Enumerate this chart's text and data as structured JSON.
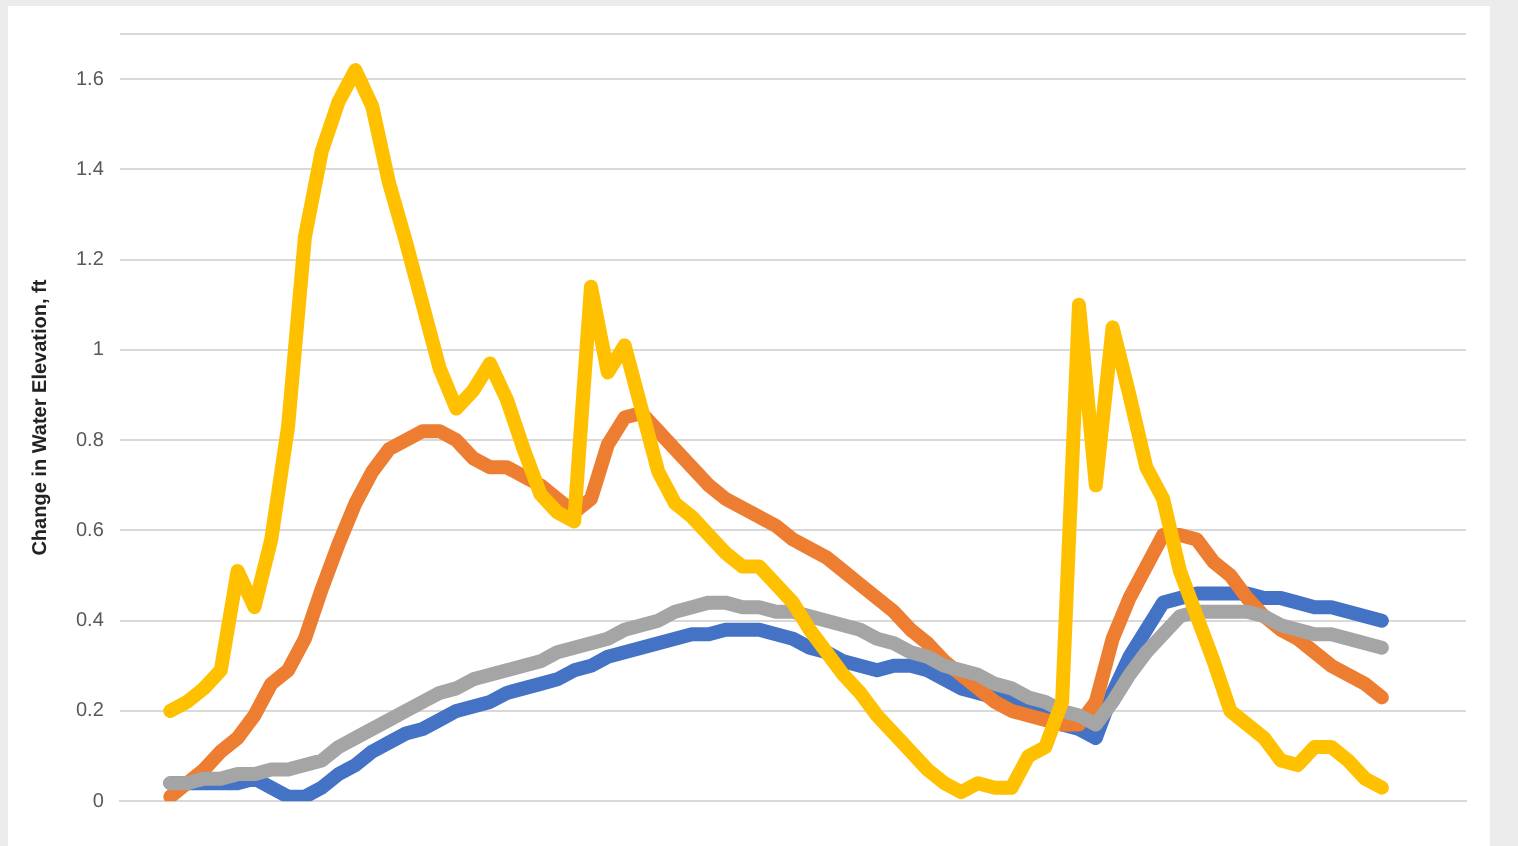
{
  "chart_data": {
    "type": "line",
    "ylabel": "Change in Water Elevation, ft",
    "ylim": [
      0,
      1.7
    ],
    "yticks": [
      0,
      0.2,
      0.4,
      0.6,
      0.8,
      1,
      1.2,
      1.4,
      1.6
    ],
    "grid": "y",
    "marker": "none",
    "categories": [
      null,
      null,
      null,
      null,
      null,
      null,
      null,
      null,
      null,
      null,
      null,
      null,
      null,
      null,
      null,
      null,
      null,
      null,
      null,
      null,
      null,
      null,
      null,
      null,
      null,
      null,
      null,
      null,
      null,
      null,
      null,
      null,
      null,
      null,
      null,
      null,
      null,
      null,
      null,
      null,
      null,
      null,
      null,
      null,
      null,
      null,
      null,
      null,
      null,
      null,
      null,
      null,
      null,
      null,
      null,
      null,
      null,
      null,
      null,
      null,
      null,
      null,
      null,
      null,
      null,
      null,
      null,
      null,
      null,
      null,
      null,
      null,
      null,
      null,
      null,
      null,
      null,
      null,
      null,
      null,
      null
    ],
    "series": [
      {
        "color": "#4472c4",
        "values": [
          null,
          null,
          null,
          0.04,
          0.04,
          0.04,
          0.04,
          0.04,
          0.05,
          0.03,
          0.01,
          0.01,
          0.03,
          0.06,
          0.08,
          0.11,
          0.13,
          0.15,
          0.16,
          0.18,
          0.2,
          0.21,
          0.22,
          0.24,
          0.25,
          0.26,
          0.27,
          0.29,
          0.3,
          0.32,
          0.33,
          0.34,
          0.35,
          0.36,
          0.37,
          0.37,
          0.38,
          0.38,
          0.38,
          0.37,
          0.36,
          0.34,
          0.33,
          0.31,
          0.3,
          0.29,
          0.3,
          0.3,
          0.29,
          0.27,
          0.25,
          0.24,
          0.23,
          0.22,
          0.21,
          0.19,
          0.17,
          0.16,
          0.14,
          0.24,
          0.32,
          0.38,
          0.44,
          0.45,
          0.46,
          0.46,
          0.46,
          0.46,
          0.45,
          0.45,
          0.44,
          0.43,
          0.43,
          0.42,
          0.41,
          0.4,
          null,
          null,
          null,
          null,
          null
        ]
      },
      {
        "color": "#ed7d31",
        "values": [
          null,
          null,
          null,
          0.01,
          0.04,
          0.07,
          0.11,
          0.14,
          0.19,
          0.26,
          0.29,
          0.36,
          0.47,
          0.57,
          0.66,
          0.73,
          0.78,
          0.8,
          0.82,
          0.82,
          0.8,
          0.76,
          0.74,
          0.74,
          0.72,
          0.7,
          0.67,
          0.64,
          0.67,
          0.79,
          0.85,
          0.86,
          0.82,
          0.78,
          0.74,
          0.7,
          0.67,
          0.65,
          0.63,
          0.61,
          0.58,
          0.56,
          0.54,
          0.51,
          0.48,
          0.45,
          0.42,
          0.38,
          0.35,
          0.31,
          0.28,
          0.25,
          0.22,
          0.2,
          0.19,
          0.18,
          0.17,
          0.17,
          0.22,
          0.36,
          0.45,
          0.52,
          0.59,
          0.59,
          0.58,
          0.53,
          0.5,
          0.45,
          0.41,
          0.38,
          0.36,
          0.33,
          0.3,
          0.28,
          0.26,
          0.23,
          null,
          null,
          null,
          null,
          null
        ]
      },
      {
        "color": "#a5a5a5",
        "values": [
          null,
          null,
          null,
          0.04,
          0.04,
          0.05,
          0.05,
          0.06,
          0.06,
          0.07,
          0.07,
          0.08,
          0.09,
          0.12,
          0.14,
          0.16,
          0.18,
          0.2,
          0.22,
          0.24,
          0.25,
          0.27,
          0.28,
          0.29,
          0.3,
          0.31,
          0.33,
          0.34,
          0.35,
          0.36,
          0.38,
          0.39,
          0.4,
          0.42,
          0.43,
          0.44,
          0.44,
          0.43,
          0.43,
          0.42,
          0.42,
          0.41,
          0.4,
          0.39,
          0.38,
          0.36,
          0.35,
          0.33,
          0.32,
          0.3,
          0.29,
          0.28,
          0.26,
          0.25,
          0.23,
          0.22,
          0.2,
          0.19,
          0.17,
          0.22,
          0.28,
          0.33,
          0.37,
          0.41,
          0.42,
          0.42,
          0.42,
          0.42,
          0.41,
          0.39,
          0.38,
          0.37,
          0.37,
          0.36,
          0.35,
          0.34,
          null,
          null,
          null,
          null,
          null
        ]
      },
      {
        "color": "#ffc000",
        "values": [
          null,
          null,
          null,
          0.2,
          0.22,
          0.25,
          0.29,
          0.51,
          0.43,
          0.58,
          0.83,
          1.25,
          1.44,
          1.55,
          1.62,
          1.54,
          1.37,
          1.24,
          1.1,
          0.96,
          0.87,
          0.91,
          0.97,
          0.89,
          0.78,
          0.68,
          0.64,
          0.62,
          1.14,
          0.95,
          1.01,
          0.87,
          0.73,
          0.66,
          0.63,
          0.59,
          0.55,
          0.52,
          0.52,
          0.48,
          0.44,
          0.38,
          0.33,
          0.28,
          0.24,
          0.19,
          0.15,
          0.11,
          0.07,
          0.04,
          0.02,
          0.04,
          0.03,
          0.03,
          0.1,
          0.12,
          0.22,
          1.1,
          0.7,
          1.05,
          0.9,
          0.74,
          0.67,
          0.51,
          0.41,
          0.31,
          0.2,
          0.17,
          0.14,
          0.09,
          0.08,
          0.12,
          0.12,
          0.09,
          0.05,
          0.03,
          null,
          null,
          null,
          null,
          null
        ]
      }
    ]
  }
}
